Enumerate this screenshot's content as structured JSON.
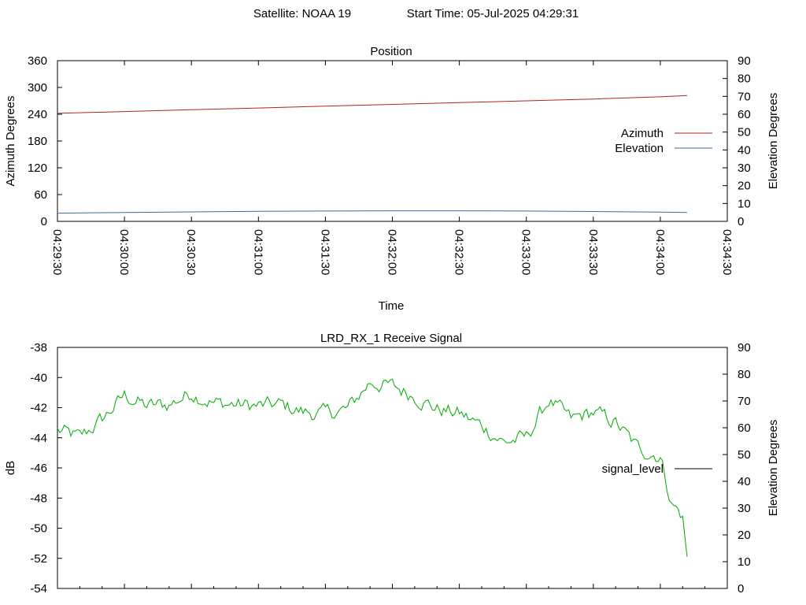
{
  "header": {
    "satellite_text": "Satellite: NOAA 19",
    "start_time_text": "Start Time: 05-Jul-2025 04:29:31"
  },
  "chart_data": [
    {
      "type": "line",
      "title": "Position",
      "xlabel": "Time",
      "ylabel": "Azimuth Degrees",
      "y2label": "Elevation Degrees",
      "xlim": [
        "04:29:30",
        "04:34:30"
      ],
      "ylim": [
        0,
        360
      ],
      "y2lim": [
        0,
        90
      ],
      "xticks": [
        "04:29:30",
        "04:30:00",
        "04:30:30",
        "04:31:00",
        "04:31:30",
        "04:32:00",
        "04:32:30",
        "04:33:00",
        "04:33:30",
        "04:34:00",
        "04:34:30"
      ],
      "yticks": [
        0,
        60,
        120,
        180,
        240,
        300,
        360
      ],
      "y2ticks": [
        0,
        10,
        20,
        30,
        40,
        50,
        60,
        70,
        80,
        90
      ],
      "grid": false,
      "legend_position": "right",
      "series": [
        {
          "name": "Azimuth",
          "axis": "left",
          "color": "#b22222",
          "x": [
            "04:29:30",
            "04:30:00",
            "04:30:30",
            "04:31:00",
            "04:31:30",
            "04:32:00",
            "04:32:30",
            "04:33:00",
            "04:33:30",
            "04:34:00",
            "04:34:12"
          ],
          "values": [
            242,
            246,
            250,
            254,
            258,
            262,
            266,
            270,
            274,
            279,
            282
          ]
        },
        {
          "name": "Elevation",
          "axis": "right",
          "color": "#3a6ea5",
          "x": [
            "04:29:30",
            "04:30:00",
            "04:30:30",
            "04:31:00",
            "04:31:30",
            "04:32:00",
            "04:32:30",
            "04:33:00",
            "04:33:30",
            "04:34:00",
            "04:34:12"
          ],
          "values": [
            4.6,
            5.0,
            5.3,
            5.6,
            5.8,
            5.9,
            5.9,
            5.8,
            5.5,
            5.2,
            5.0
          ]
        }
      ]
    },
    {
      "type": "line",
      "title": "LRD_RX_1 Receive Signal",
      "xlabel": "",
      "ylabel": "dB",
      "y2label": "Elevation Degrees",
      "ylim": [
        -54,
        -38
      ],
      "y2lim": [
        0,
        90
      ],
      "yticks": [
        -54,
        -52,
        -50,
        -48,
        -46,
        -44,
        -42,
        -40,
        -38
      ],
      "y2ticks": [
        0,
        10,
        20,
        30,
        40,
        50,
        60,
        70,
        80,
        90
      ],
      "grid": false,
      "legend_position": "right",
      "series": [
        {
          "name": "signal_level",
          "color": "#00aa00",
          "x": [
            "04:29:30",
            "04:29:40",
            "04:29:50",
            "04:30:00",
            "04:30:10",
            "04:30:20",
            "04:30:30",
            "04:30:40",
            "04:30:50",
            "04:31:00",
            "04:31:10",
            "04:31:20",
            "04:31:30",
            "04:31:40",
            "04:31:50",
            "04:32:00",
            "04:32:10",
            "04:32:20",
            "04:32:30",
            "04:32:40",
            "04:32:50",
            "04:33:00",
            "04:33:10",
            "04:33:20",
            "04:33:30",
            "04:33:40",
            "04:33:50",
            "04:34:00",
            "04:34:05",
            "04:34:10",
            "04:34:12"
          ],
          "values": [
            -43.5,
            -44.0,
            -42.8,
            -41.2,
            -41.9,
            -41.8,
            -41.0,
            -41.7,
            -41.8,
            -41.9,
            -41.8,
            -42.3,
            -42.4,
            -42.1,
            -40.3,
            -40.6,
            -41.2,
            -42.1,
            -42.4,
            -43.2,
            -44.3,
            -44.0,
            -41.5,
            -42.8,
            -42.3,
            -43.0,
            -44.7,
            -45.2,
            -48.3,
            -49.2,
            -51.9
          ]
        }
      ]
    }
  ]
}
